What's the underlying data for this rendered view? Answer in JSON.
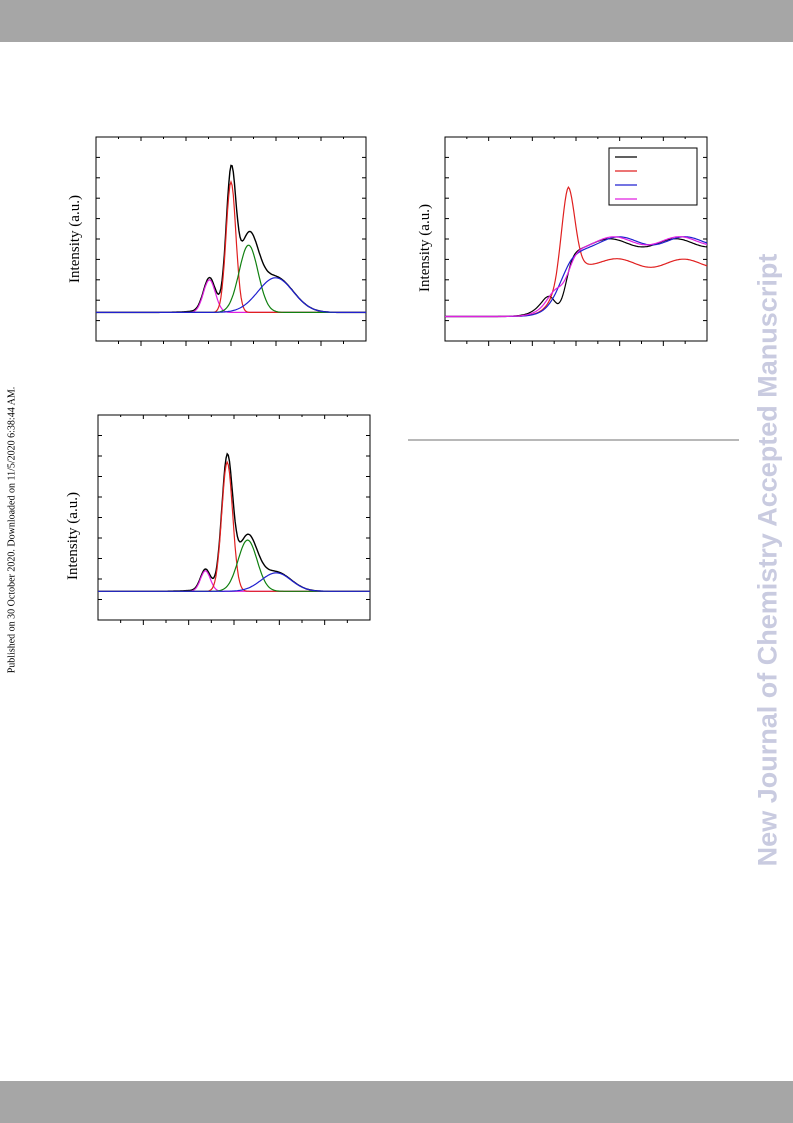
{
  "side_note": "Published on 30 October 2020. Downloaded on 11/5/2020 6:38:44 AM.",
  "watermark": "New Journal of Chemistry Accepted Manuscript",
  "colors": {
    "band": "#a6a6a6",
    "watermark": "#c9cbe0",
    "black": "#000000",
    "red": "#e02020",
    "green": "#108010",
    "blue": "#2020d0",
    "magenta": "#e020e0",
    "lavender": "#6a6ae8"
  },
  "chart_data": [
    {
      "type": "line",
      "ylabel": "Intensity (a.u.)",
      "x_range": [
        0,
        1
      ],
      "y_range": [
        0,
        1
      ],
      "baseline": 0.14,
      "series": [
        {
          "color": "black",
          "kind": "sum"
        },
        {
          "color": "magenta",
          "kind": "gauss",
          "x0": 0.42,
          "amp": 0.16,
          "sigma": 0.022
        },
        {
          "color": "red",
          "kind": "gauss",
          "x0": 0.5,
          "amp": 0.64,
          "sigma": 0.018
        },
        {
          "color": "green",
          "kind": "gauss",
          "x0": 0.565,
          "amp": 0.33,
          "sigma": 0.035
        },
        {
          "color": "blue",
          "kind": "gauss",
          "x0": 0.665,
          "amp": 0.17,
          "sigma": 0.065
        }
      ]
    },
    {
      "type": "line",
      "ylabel": "Intensity (a.u.)",
      "x_range": [
        0,
        1
      ],
      "y_range": [
        0,
        1
      ],
      "legend": {
        "position": "top-right",
        "entries": [
          "",
          "",
          "",
          ""
        ],
        "colors": [
          "black",
          "red",
          "blue",
          "magenta"
        ]
      },
      "series": [
        {
          "color": "black",
          "peak_x": 0.44,
          "peak_h": 0.36,
          "post": 0.3
        },
        {
          "color": "red",
          "peak_x": 0.47,
          "peak_h": 0.92,
          "post": 0.2
        },
        {
          "color": "blue",
          "peak_x": 0.475,
          "peak_h": 0.55,
          "post": 0.31
        },
        {
          "color": "magenta",
          "peak_x": 0.455,
          "peak_h": 0.46,
          "post": 0.31
        }
      ]
    },
    {
      "type": "line",
      "ylabel": "Intensity (a.u.)",
      "x_range": [
        0,
        1
      ],
      "y_range": [
        0,
        1
      ],
      "baseline": 0.14,
      "series": [
        {
          "color": "black",
          "kind": "sum"
        },
        {
          "color": "magenta",
          "kind": "gauss",
          "x0": 0.395,
          "amp": 0.1,
          "sigma": 0.018
        },
        {
          "color": "red",
          "kind": "gauss",
          "x0": 0.475,
          "amp": 0.63,
          "sigma": 0.02
        },
        {
          "color": "green",
          "kind": "gauss",
          "x0": 0.55,
          "amp": 0.25,
          "sigma": 0.035
        },
        {
          "color": "blue",
          "kind": "gauss",
          "x0": 0.655,
          "amp": 0.09,
          "sigma": 0.055
        }
      ]
    }
  ]
}
